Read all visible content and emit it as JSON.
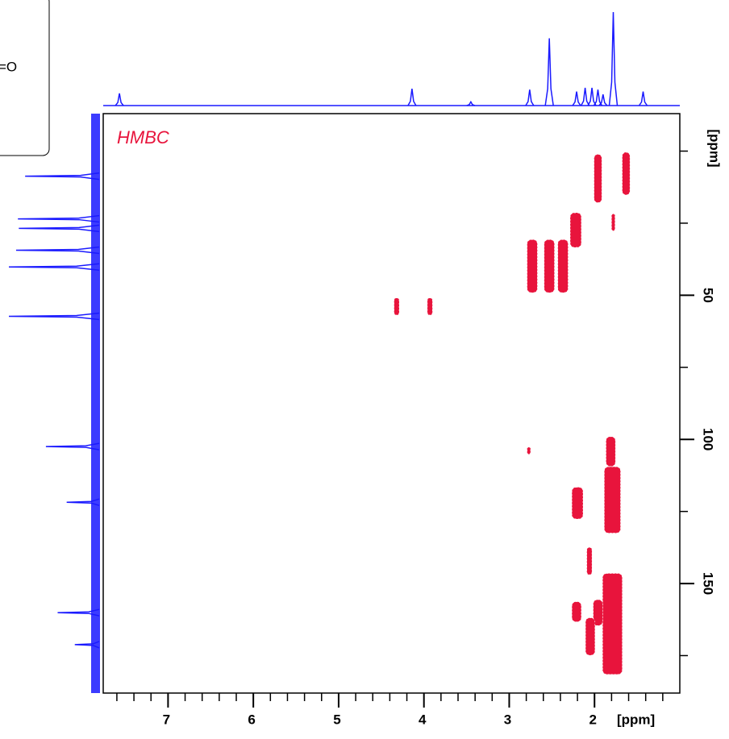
{
  "chart_data": {
    "type": "contour",
    "annotation": "HMBC",
    "structure_label": "=O",
    "xlabel": "[ppm]",
    "ylabel": "[ppm]",
    "xlim": [
      7.76,
      1.0
    ],
    "ylim": [
      -13,
      188
    ],
    "xticks": [
      7,
      6,
      5,
      4,
      3,
      2
    ],
    "xminor_ticks": [
      7.6,
      7.4,
      7.2,
      6.8,
      6.6,
      6.4,
      6.2,
      5.8,
      5.6,
      5.4,
      5.2,
      4.8,
      4.6,
      4.4,
      4.2,
      3.8,
      3.6,
      3.4,
      3.2,
      2.8,
      2.6,
      2.4,
      2.2,
      1.8,
      1.6,
      1.4,
      1.2
    ],
    "yticks": [
      50,
      100,
      150
    ],
    "yminor_ticks": [
      0,
      25,
      75,
      125,
      175
    ],
    "peak_color": "#e8143c",
    "projection_color": "#1a1aff",
    "peaks": [
      {
        "x": 1.96,
        "y": 9.5,
        "dx": 0.09,
        "dy": 16.8
      },
      {
        "x": 1.63,
        "y": 7.8,
        "dx": 0.09,
        "dy": 14.8
      },
      {
        "x": 1.78,
        "y": 24.7,
        "dx": 0.04,
        "dy": 5.9
      },
      {
        "x": 2.22,
        "y": 27.4,
        "dx": 0.13,
        "dy": 12
      },
      {
        "x": 2.73,
        "y": 39.9,
        "dx": 0.12,
        "dy": 18.4
      },
      {
        "x": 2.53,
        "y": 39.9,
        "dx": 0.12,
        "dy": 18.4
      },
      {
        "x": 2.37,
        "y": 39.9,
        "dx": 0.12,
        "dy": 18.4
      },
      {
        "x": 4.32,
        "y": 53.9,
        "dx": 0.06,
        "dy": 6
      },
      {
        "x": 3.93,
        "y": 53.9,
        "dx": 0.06,
        "dy": 6
      },
      {
        "x": 2.77,
        "y": 103.9,
        "dx": 0.04,
        "dy": 2.5
      },
      {
        "x": 1.81,
        "y": 104.2,
        "dx": 0.11,
        "dy": 10.3
      },
      {
        "x": 1.79,
        "y": 121,
        "dx": 0.19,
        "dy": 23
      },
      {
        "x": 2.2,
        "y": 122.1,
        "dx": 0.13,
        "dy": 11
      },
      {
        "x": 2.06,
        "y": 142.2,
        "dx": 0.06,
        "dy": 9.5
      },
      {
        "x": 2.21,
        "y": 159.8,
        "dx": 0.11,
        "dy": 7
      },
      {
        "x": 1.96,
        "y": 160.1,
        "dx": 0.11,
        "dy": 9
      },
      {
        "x": 2.05,
        "y": 168.4,
        "dx": 0.11,
        "dy": 13
      },
      {
        "x": 1.79,
        "y": 164,
        "dx": 0.23,
        "dy": 35
      }
    ],
    "top_projection": {
      "x": [
        7.57,
        4.14,
        3.45,
        2.76,
        2.53,
        2.21,
        2.11,
        2.03,
        1.96,
        1.9,
        1.78,
        1.43
      ],
      "values": [
        13,
        18,
        4,
        17,
        72,
        15,
        19,
        19,
        17,
        12,
        100,
        15
      ]
    },
    "left_projection": {
      "y": [
        8.7,
        23.5,
        26.8,
        34.4,
        40.2,
        57.3,
        102.5,
        121.8,
        160.1,
        171.2
      ],
      "values": [
        82,
        90,
        89,
        92,
        100,
        100,
        59,
        36,
        46,
        27
      ]
    }
  }
}
